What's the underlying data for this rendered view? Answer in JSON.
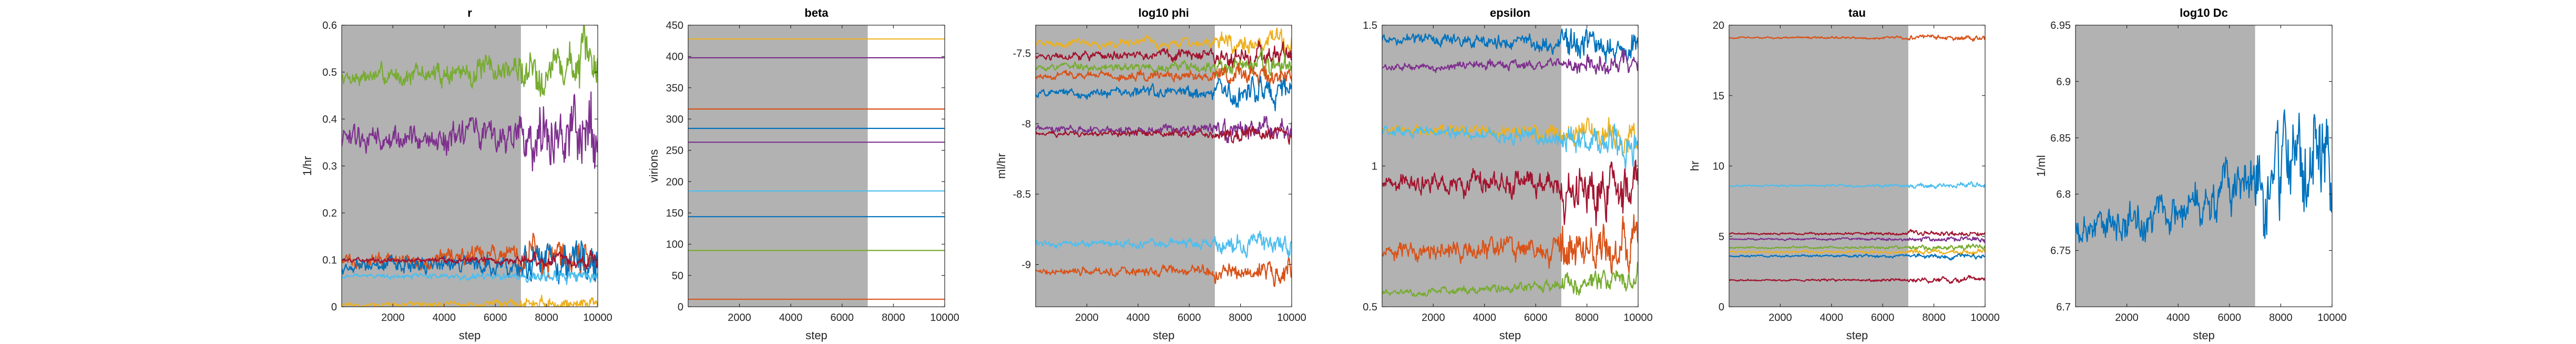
{
  "chart_data": [
    {
      "type": "line",
      "title": "r",
      "xlabel": "step",
      "ylabel": "1/hr",
      "xlim": [
        1,
        10000
      ],
      "ylim": [
        0,
        0.6
      ],
      "xticks": [
        2000,
        4000,
        6000,
        8000,
        10000
      ],
      "yticks": [
        0,
        0.1,
        0.2,
        0.3,
        0.4,
        0.5,
        0.6
      ],
      "ytick_labels": [
        "0",
        "0.1",
        "0.2",
        "0.3",
        "0.4",
        "0.5",
        "0.6"
      ],
      "burn_in_until": 7000,
      "series": [
        {
          "color": "#77ac30",
          "level": 0.49,
          "noise": 0.015,
          "end_level": 0.52
        },
        {
          "color": "#7e2f8e",
          "level": 0.355,
          "noise": 0.02,
          "end_level": 0.37
        },
        {
          "color": "#d95319",
          "level": 0.1,
          "noise": 0.012,
          "end_level": 0.11
        },
        {
          "color": "#0072bd",
          "level": 0.085,
          "noise": 0.012,
          "end_level": 0.09
        },
        {
          "color": "#a2142f",
          "level": 0.1,
          "noise": 0.004
        },
        {
          "color": "#4dbeee",
          "level": 0.065,
          "noise": 0.004
        },
        {
          "color": "#edb120",
          "level": 0.005,
          "noise": 0.004
        }
      ]
    },
    {
      "type": "line",
      "title": "beta",
      "xlabel": "step",
      "ylabel": "virions",
      "xlim": [
        1,
        10000
      ],
      "ylim": [
        0,
        450
      ],
      "xticks": [
        2000,
        4000,
        6000,
        8000,
        10000
      ],
      "yticks": [
        0,
        50,
        100,
        150,
        200,
        250,
        300,
        350,
        400,
        450
      ],
      "ytick_labels": [
        "0",
        "50",
        "100",
        "150",
        "200",
        "250",
        "300",
        "350",
        "400",
        "450"
      ],
      "burn_in_until": 7000,
      "series": [
        {
          "color": "#edb120",
          "level": 428,
          "noise": 0
        },
        {
          "color": "#7e2f8e",
          "level": 398,
          "noise": 0
        },
        {
          "color": "#d95319",
          "level": 316,
          "noise": 0
        },
        {
          "color": "#0072bd",
          "level": 285,
          "noise": 0
        },
        {
          "color": "#7e2f8e",
          "level": 263,
          "noise": 0
        },
        {
          "color": "#4dbeee",
          "level": 185,
          "noise": 0
        },
        {
          "color": "#0072bd",
          "level": 144,
          "noise": 0
        },
        {
          "color": "#77ac30",
          "level": 90,
          "noise": 0
        },
        {
          "color": "#d95319",
          "level": 12,
          "noise": 0
        }
      ]
    },
    {
      "type": "line",
      "title": "log10 phi",
      "xlabel": "step",
      "ylabel": "ml/hr",
      "xlim": [
        1,
        10000
      ],
      "ylim": [
        -9.3,
        -7.3
      ],
      "xticks": [
        2000,
        4000,
        6000,
        8000,
        10000
      ],
      "yticks": [
        -9,
        -8.5,
        -8,
        -7.5
      ],
      "ytick_labels": [
        "-9",
        "-8.5",
        "-8",
        "-7.5"
      ],
      "burn_in_until": 7000,
      "series": [
        {
          "color": "#edb120",
          "level": -7.43,
          "noise": 0.02
        },
        {
          "color": "#a2142f",
          "level": -7.52,
          "noise": 0.02
        },
        {
          "color": "#77ac30",
          "level": -7.6,
          "noise": 0.02
        },
        {
          "color": "#d95319",
          "level": -7.66,
          "noise": 0.02
        },
        {
          "color": "#0072bd",
          "level": -7.78,
          "noise": 0.025
        },
        {
          "color": "#7e2f8e",
          "level": -8.04,
          "noise": 0.02
        },
        {
          "color": "#a2142f",
          "level": -8.07,
          "noise": 0.015
        },
        {
          "color": "#4dbeee",
          "level": -8.85,
          "noise": 0.02
        },
        {
          "color": "#d95319",
          "level": -9.05,
          "noise": 0.02
        }
      ]
    },
    {
      "type": "line",
      "title": "epsilon",
      "xlabel": "step",
      "ylabel": "",
      "xlim": [
        1,
        10000
      ],
      "ylim": [
        0.5,
        1.5
      ],
      "xticks": [
        2000,
        4000,
        6000,
        8000,
        10000
      ],
      "yticks": [
        0.5,
        1,
        1.5
      ],
      "ytick_labels": [
        "0.5",
        "1",
        "1.5"
      ],
      "burn_in_until": 7000,
      "series": [
        {
          "color": "#0072bd",
          "level": 1.45,
          "noise": 0.015,
          "end_level": 1.42
        },
        {
          "color": "#7e2f8e",
          "level": 1.35,
          "noise": 0.01,
          "end_level": 1.37
        },
        {
          "color": "#edb120",
          "level": 1.13,
          "noise": 0.015,
          "end_level": 1.1
        },
        {
          "color": "#4dbeee",
          "level": 1.12,
          "noise": 0.015,
          "end_level": 1.08
        },
        {
          "color": "#a2142f",
          "level": 0.94,
          "noise": 0.025,
          "end_level": 0.93
        },
        {
          "color": "#d95319",
          "level": 0.7,
          "noise": 0.025,
          "end_level": 0.72
        },
        {
          "color": "#77ac30",
          "level": 0.55,
          "noise": 0.01,
          "end_level": 0.6
        }
      ]
    },
    {
      "type": "line",
      "title": "tau",
      "xlabel": "step",
      "ylabel": "hr",
      "xlim": [
        1,
        10000
      ],
      "ylim": [
        0,
        20
      ],
      "xticks": [
        2000,
        4000,
        6000,
        8000,
        10000
      ],
      "yticks": [
        0,
        5,
        10,
        15,
        20
      ],
      "ytick_labels": [
        "0",
        "5",
        "10",
        "15",
        "20"
      ],
      "burn_in_until": 7000,
      "series": [
        {
          "color": "#d95319",
          "level": 19.1,
          "noise": 0.05
        },
        {
          "color": "#4dbeee",
          "level": 8.6,
          "noise": 0.05
        },
        {
          "color": "#a2142f",
          "level": 5.2,
          "noise": 0.05
        },
        {
          "color": "#7e2f8e",
          "level": 4.8,
          "noise": 0.05
        },
        {
          "color": "#77ac30",
          "level": 4.2,
          "noise": 0.05
        },
        {
          "color": "#edb120",
          "level": 3.9,
          "noise": 0.05
        },
        {
          "color": "#0072bd",
          "level": 3.6,
          "noise": 0.05
        },
        {
          "color": "#a2142f",
          "level": 1.9,
          "noise": 0.05
        }
      ]
    },
    {
      "type": "line",
      "title": "log10 Dc",
      "xlabel": "step",
      "ylabel": "1/ml",
      "xlim": [
        1,
        10000
      ],
      "ylim": [
        6.7,
        6.95
      ],
      "xticks": [
        2000,
        4000,
        6000,
        8000,
        10000
      ],
      "yticks": [
        6.7,
        6.75,
        6.8,
        6.85,
        6.9,
        6.95
      ],
      "ytick_labels": [
        "6.7",
        "6.75",
        "6.8",
        "6.85",
        "6.9",
        "6.95"
      ],
      "burn_in_until": 7000,
      "series": [
        {
          "color": "#0072bd",
          "level": 6.768,
          "noise": 0.012,
          "end_level": 6.84
        }
      ]
    }
  ]
}
